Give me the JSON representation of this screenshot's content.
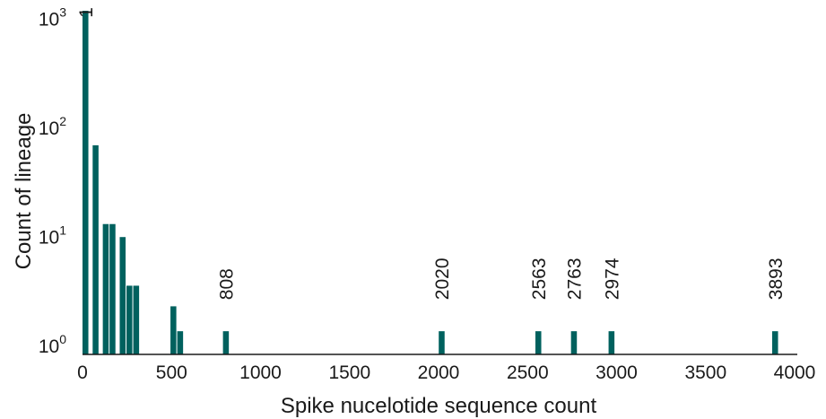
{
  "chart_data": {
    "type": "bar",
    "title": "",
    "xlabel": "Spike nucelotide sequence count",
    "ylabel": "Count of lineage",
    "xlim": [
      0,
      4000
    ],
    "y_scale": "log",
    "x_ticks": [
      0,
      500,
      1000,
      1500,
      2000,
      2500,
      3000,
      3500,
      4000
    ],
    "y_ticks": [
      {
        "base": "10",
        "exp": "0"
      },
      {
        "base": "10",
        "exp": "1"
      },
      {
        "base": "10",
        "exp": "2"
      },
      {
        "base": "10",
        "exp": "3"
      }
    ],
    "bar_width": 38,
    "bars": [
      {
        "x": 19,
        "y": 1130,
        "label": "1"
      },
      {
        "x": 76,
        "y": 66
      },
      {
        "x": 133,
        "y": 12.5
      },
      {
        "x": 171,
        "y": 12.5
      },
      {
        "x": 228,
        "y": 9.5
      },
      {
        "x": 266,
        "y": 3.4
      },
      {
        "x": 304,
        "y": 3.4
      },
      {
        "x": 513,
        "y": 2.2
      },
      {
        "x": 551,
        "y": 1.3
      },
      {
        "x": 808,
        "y": 1.3,
        "label": "808"
      },
      {
        "x": 2020,
        "y": 1.3,
        "label": "2020"
      },
      {
        "x": 2563,
        "y": 1.3,
        "label": "2563"
      },
      {
        "x": 2763,
        "y": 1.3,
        "label": "2763"
      },
      {
        "x": 2974,
        "y": 1.3,
        "label": "2974"
      },
      {
        "x": 3893,
        "y": 1.3,
        "label": "3893"
      }
    ],
    "colors": {
      "bar": "#00615e",
      "axis": "#1a1a1a",
      "text": "#1a1a1a"
    },
    "grid": false,
    "legend": "none"
  }
}
